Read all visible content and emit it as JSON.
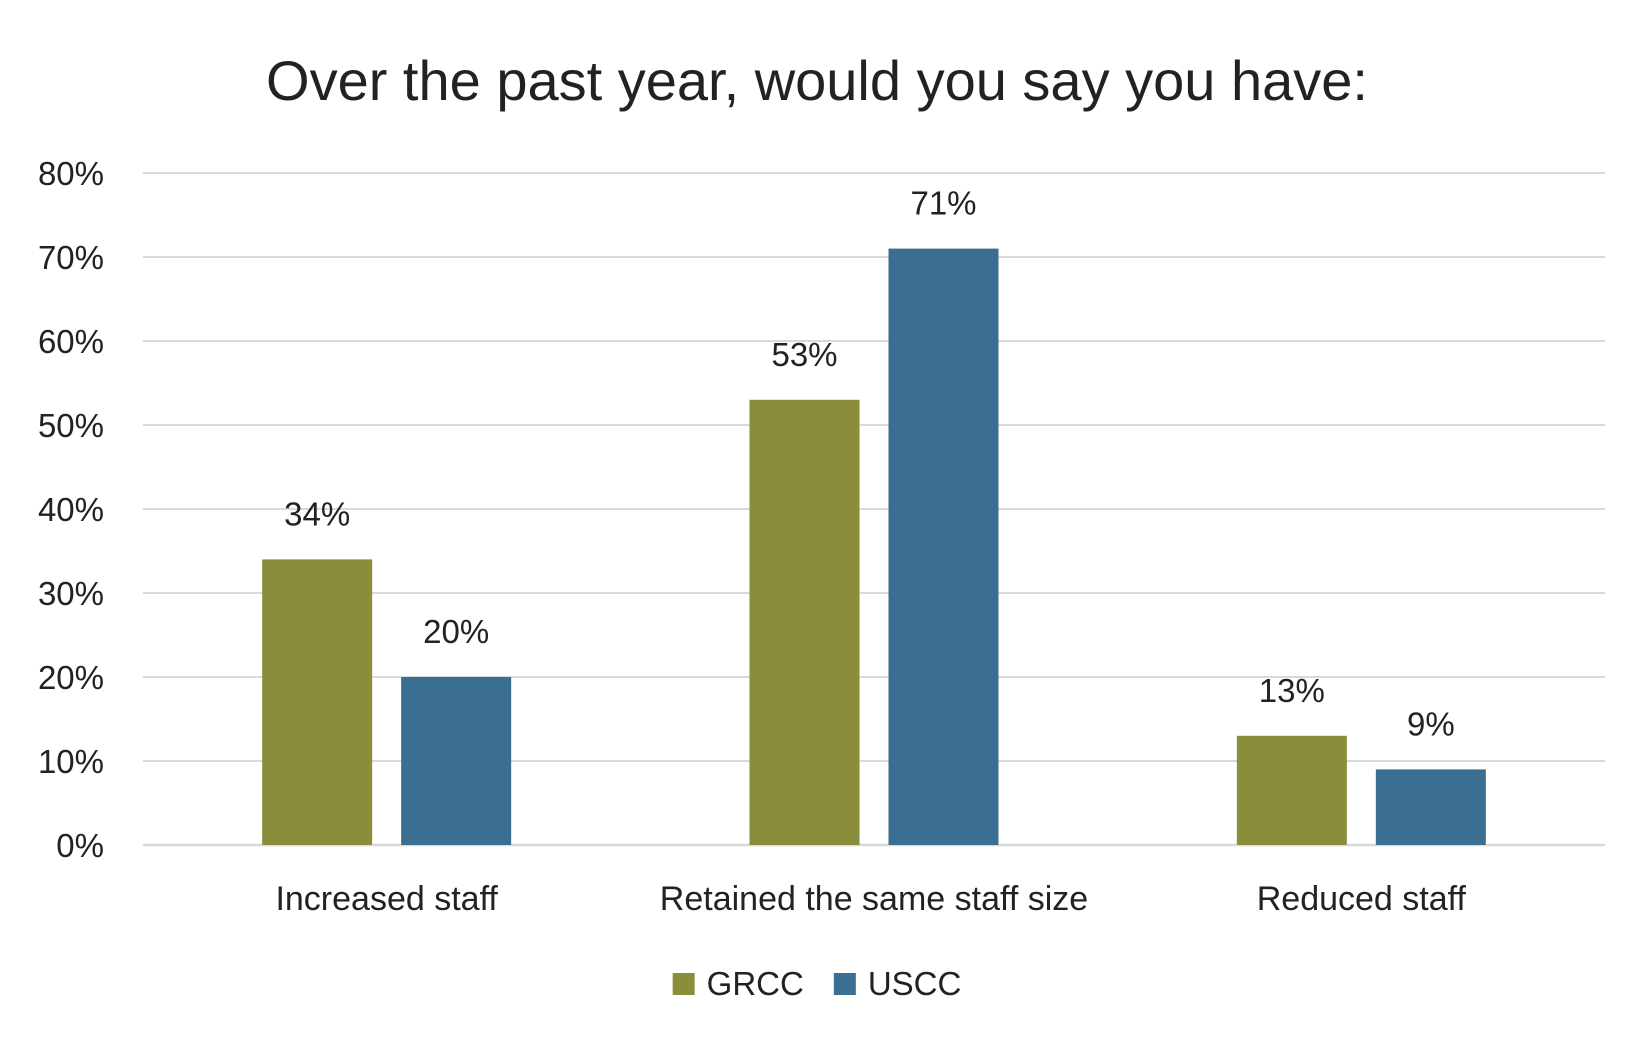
{
  "chart_data": {
    "type": "bar",
    "title": "Over the past year, would you say you have:",
    "xlabel": "",
    "ylabel": "",
    "ylim": [
      0,
      80
    ],
    "yticks": [
      "0%",
      "10%",
      "20%",
      "30%",
      "40%",
      "50%",
      "60%",
      "70%",
      "80%"
    ],
    "ytick_values": [
      0,
      10,
      20,
      30,
      40,
      50,
      60,
      70,
      80
    ],
    "grid": true,
    "legend_position": "bottom-center",
    "categories": [
      "Increased staff",
      "Retained the same staff size",
      "Reduced staff"
    ],
    "series": [
      {
        "name": "GRCC",
        "color": "#8a8d3a",
        "values": [
          34,
          53,
          13
        ],
        "labels": [
          "34%",
          "53%",
          "13%"
        ]
      },
      {
        "name": "USCC",
        "color": "#3a6f91",
        "values": [
          20,
          71,
          9
        ],
        "labels": [
          "20%",
          "71%",
          "9%"
        ]
      }
    ]
  }
}
